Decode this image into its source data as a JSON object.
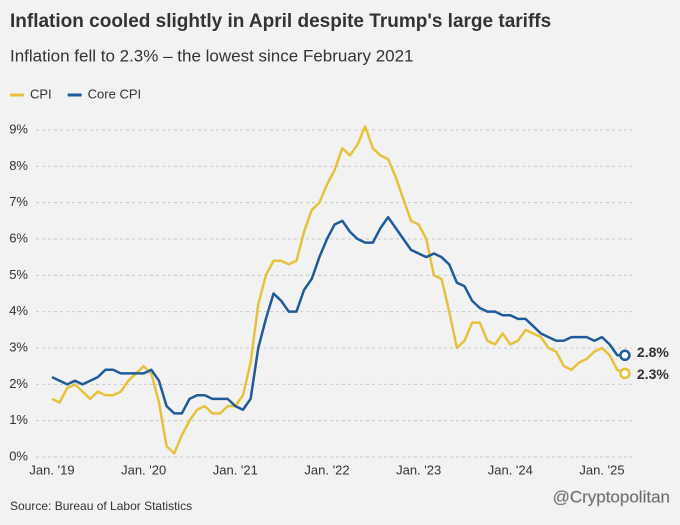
{
  "chart_data": {
    "type": "line",
    "title": "Inflation cooled slightly in April despite Trump's large tariffs",
    "subtitle": "Inflation fell to 2.3% – the lowest since February 2021",
    "source": "Source: Bureau of Labor Statistics",
    "watermark": "@Cryptopolitan",
    "categories": [
      "Jan. '19",
      null,
      null,
      null,
      null,
      null,
      null,
      null,
      null,
      null,
      null,
      null,
      "Jan. '20",
      null,
      null,
      null,
      null,
      null,
      null,
      null,
      null,
      null,
      null,
      null,
      "Jan. '21",
      null,
      null,
      null,
      null,
      null,
      null,
      null,
      null,
      null,
      null,
      null,
      "Jan. '22",
      null,
      null,
      null,
      null,
      null,
      null,
      null,
      null,
      null,
      null,
      null,
      "Jan. '23",
      null,
      null,
      null,
      null,
      null,
      null,
      null,
      null,
      null,
      null,
      null,
      "Jan. '24",
      null,
      null,
      null,
      null,
      null,
      null,
      null,
      null,
      null,
      null,
      null,
      "Jan. '25",
      null,
      null,
      null
    ],
    "series": [
      {
        "name": "CPI",
        "color": "#e6c13b",
        "label_color": "#b8921c",
        "end_label": "2.3%",
        "values": [
          1.6,
          1.5,
          1.9,
          2.0,
          1.8,
          1.6,
          1.8,
          1.7,
          1.7,
          1.8,
          2.1,
          2.3,
          2.5,
          2.3,
          1.5,
          0.3,
          0.1,
          0.6,
          1.0,
          1.3,
          1.4,
          1.2,
          1.2,
          1.4,
          1.4,
          1.7,
          2.6,
          4.2,
          5.0,
          5.4,
          5.4,
          5.3,
          5.4,
          6.2,
          6.8,
          7.0,
          7.5,
          7.9,
          8.5,
          8.3,
          8.6,
          9.1,
          8.5,
          8.3,
          8.2,
          7.7,
          7.1,
          6.5,
          6.4,
          6.0,
          5.0,
          4.9,
          4.0,
          3.0,
          3.2,
          3.7,
          3.7,
          3.2,
          3.1,
          3.4,
          3.1,
          3.2,
          3.5,
          3.4,
          3.3,
          3.0,
          2.9,
          2.5,
          2.4,
          2.6,
          2.7,
          2.9,
          3.0,
          2.8,
          2.4,
          2.3
        ]
      },
      {
        "name": "Core CPI",
        "color": "#1f5b98",
        "label_color": "#1f5b98",
        "end_label": "2.8%",
        "values": [
          2.2,
          2.1,
          2.0,
          2.1,
          2.0,
          2.1,
          2.2,
          2.4,
          2.4,
          2.3,
          2.3,
          2.3,
          2.3,
          2.4,
          2.1,
          1.4,
          1.2,
          1.2,
          1.6,
          1.7,
          1.7,
          1.6,
          1.6,
          1.6,
          1.4,
          1.3,
          1.6,
          3.0,
          3.8,
          4.5,
          4.3,
          4.0,
          4.0,
          4.6,
          4.9,
          5.5,
          6.0,
          6.4,
          6.5,
          6.2,
          6.0,
          5.9,
          5.9,
          6.3,
          6.6,
          6.3,
          6.0,
          5.7,
          5.6,
          5.5,
          5.6,
          5.5,
          5.3,
          4.8,
          4.7,
          4.3,
          4.1,
          4.0,
          4.0,
          3.9,
          3.9,
          3.8,
          3.8,
          3.6,
          3.4,
          3.3,
          3.2,
          3.2,
          3.3,
          3.3,
          3.3,
          3.2,
          3.3,
          3.1,
          2.8,
          2.8
        ]
      }
    ],
    "ylim": [
      0,
      9
    ],
    "yticks": [
      {
        "value": 0,
        "label": "0%"
      },
      {
        "value": 1,
        "label": "1%"
      },
      {
        "value": 2,
        "label": "2%"
      },
      {
        "value": 3,
        "label": "3%"
      },
      {
        "value": 4,
        "label": "4%"
      },
      {
        "value": 5,
        "label": "5%"
      },
      {
        "value": 6,
        "label": "6%"
      },
      {
        "value": 7,
        "label": "7%"
      },
      {
        "value": 8,
        "label": "8%"
      },
      {
        "value": 9,
        "label": "9%"
      }
    ],
    "grid": true
  }
}
